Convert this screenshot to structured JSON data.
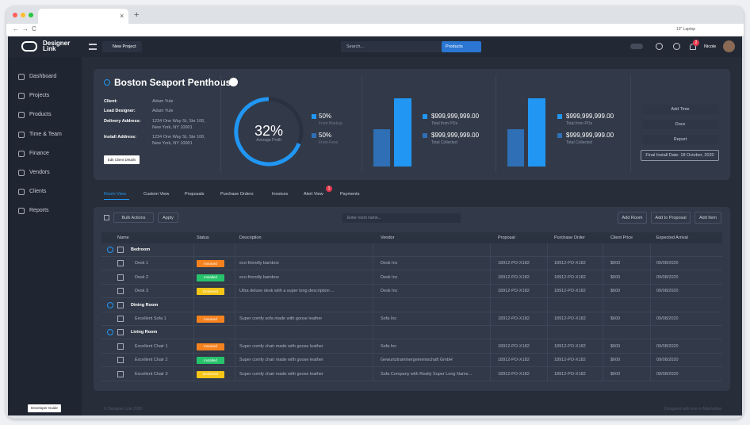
{
  "browser": {
    "zoom": "13\" Laptop"
  },
  "header": {
    "logo": "Designer Link",
    "new_project": "New Project",
    "search": "Search...",
    "products": "Products",
    "notifications": "2",
    "user": "Nicole"
  },
  "sidebar": {
    "items": [
      "Dashboard",
      "Projects",
      "Products",
      "Time & Team",
      "Finance",
      "Vendors",
      "Clients",
      "Reports"
    ],
    "footer": "Developer Guide"
  },
  "project": {
    "title": "Boston Seaport Penthouse",
    "fields": [
      {
        "label": "Client:",
        "value": [
          "Adam Yule"
        ]
      },
      {
        "label": "Lead Designer:",
        "value": [
          "Adam Yule"
        ]
      },
      {
        "label": "Delivery Address:",
        "value": [
          "1234 One Way St, Ste 106,",
          "New York, NY 10001"
        ]
      },
      {
        "label": "Install Address:",
        "value": [
          "1234 One Way St, Ste 106,",
          "New York, NY 10001"
        ]
      }
    ],
    "edit": "Edit Client Details",
    "profit": {
      "value": "32%",
      "label": "Average Profit"
    },
    "split": [
      {
        "value": "50%",
        "label": "From Markup"
      },
      {
        "value": "50%",
        "label": "From Fees"
      }
    ],
    "totals": [
      [
        {
          "value": "$999,999,999.00",
          "label": "Total from POs"
        },
        {
          "value": "$999,999,999.00",
          "label": "Total Collected"
        }
      ],
      [
        {
          "value": "$999,999,999.00",
          "label": "Total from POs"
        },
        {
          "value": "$999,999,999.00",
          "label": "Total Collected"
        }
      ]
    ],
    "actions": [
      "Add Time",
      "Docs",
      "Report"
    ],
    "final_install": "Final Install Date: 18 October, 2020"
  },
  "tabs": {
    "items": [
      "Room View",
      "Custom View",
      "Proposals",
      "Purchase Orders",
      "Invoices",
      "Alert View",
      "Payments"
    ],
    "badge": "1"
  },
  "toolbar": {
    "bulk": "Bulk Actions",
    "apply": "Apply",
    "room_placeholder": "Enter room name...",
    "buttons": [
      "Add Room",
      "Add to Proposal",
      "Add Item"
    ]
  },
  "table": {
    "columns": [
      "Name",
      "Status",
      "Description",
      "Vendor",
      "Proposal",
      "Purchase Order",
      "Client Price",
      "Expected Arrival"
    ],
    "groups": [
      {
        "name": "Bedroom",
        "rows": [
          [
            "Desk 1",
            "Invoiced",
            "eco-friendly bamboo",
            "Desk Inc",
            "18912-PO-X182",
            "18912-PO-X182",
            "$600",
            "09/08/2020"
          ],
          [
            "Desk 2",
            "Installed",
            "eco-friendly bamboo",
            "Desk Inc",
            "18912-PO-X182",
            "18912-PO-X182",
            "$600",
            "09/08/2020"
          ],
          [
            "Desk 3",
            "Delivered",
            "Ultra deluxe desk with a super long description ...",
            "Desk Inc",
            "18912-PO-X182",
            "18912-PO-X182",
            "$600",
            "09/08/2020"
          ]
        ]
      },
      {
        "name": "Dining Room",
        "rows": [
          [
            "Excellent Sofa 1",
            "Invoiced",
            "Super comfy sofa made with goose leather",
            "Sofa Inc",
            "18912-PO-X182",
            "18912-PO-X182",
            "$600",
            "09/08/2020"
          ]
        ]
      },
      {
        "name": "Living Room",
        "rows": [
          [
            "Excellent Chair 1",
            "Invoiced",
            "Super comfy chair made with goose leather",
            "Sofa Inc",
            "18912-PO-X182",
            "18912-PO-X182",
            "$600",
            "09/08/2020"
          ],
          [
            "Excellent Chair 2",
            "Installed",
            "Super comfy chair made with goose leather",
            "Gewurtztraminergemeinschaft GmbH",
            "18912-PO-X182",
            "18912-PO-X182",
            "$600",
            "09/08/2020"
          ],
          [
            "Excellent Chair 3",
            "Delivered",
            "Super comfy chair made with goose leather",
            "Sofa Company with Really Super Long Name...",
            "18912-PO-X182",
            "18912-PO-X182",
            "$600",
            "09/08/2020"
          ]
        ]
      }
    ]
  },
  "footer": {
    "left": "© Designer Link 2020",
    "right": "Designed with love in Manhattan"
  }
}
